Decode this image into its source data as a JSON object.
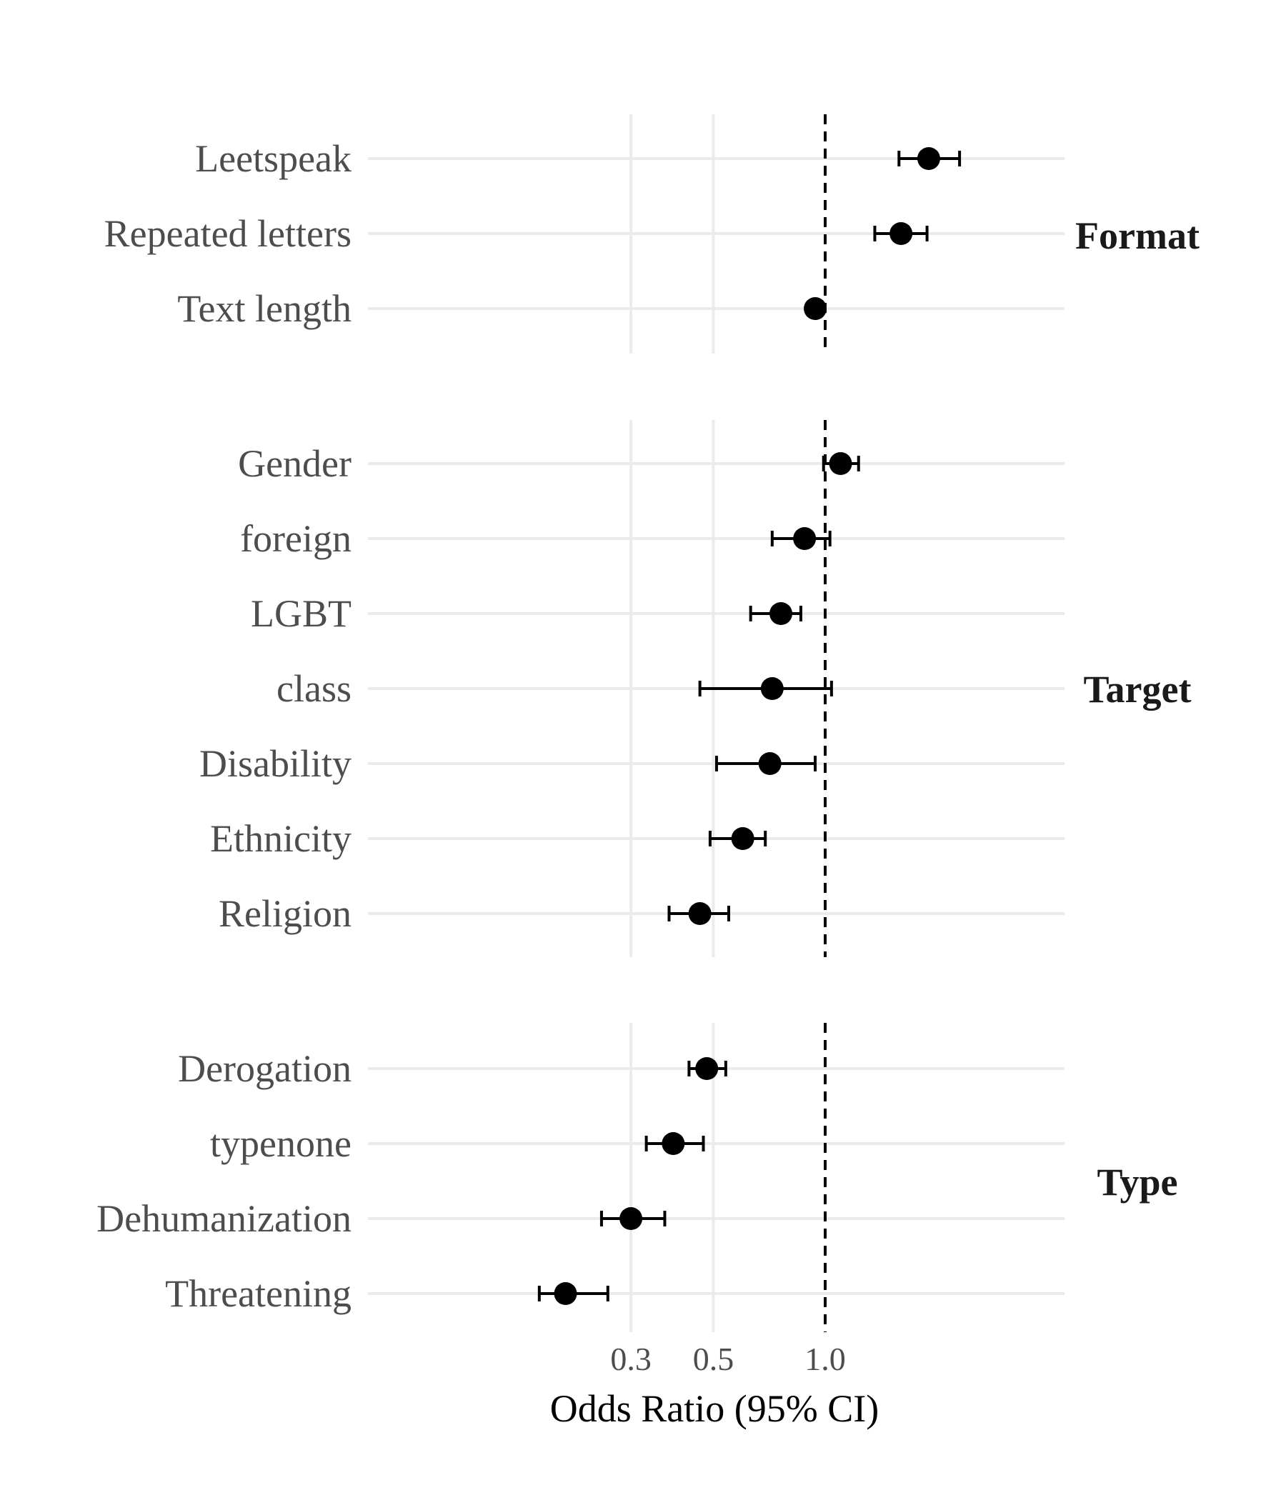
{
  "chart_data": {
    "type": "forest",
    "xlabel": "Odds Ratio (95% CI)",
    "x_scale": "log",
    "xlim": [
      0.17,
      2.8
    ],
    "x_ticks": [
      {
        "value": 0.3,
        "label": "0.3"
      },
      {
        "value": 0.5,
        "label": "0.5"
      },
      {
        "value": 1.0,
        "label": "1.0"
      }
    ],
    "reference_line": 1.0,
    "grid": true,
    "panels": [
      {
        "name": "Format",
        "rows": [
          {
            "label": "Leetspeak",
            "or": 1.9,
            "lo": 1.58,
            "hi": 2.3
          },
          {
            "label": "Repeated letters",
            "or": 1.6,
            "lo": 1.36,
            "hi": 1.88
          },
          {
            "label": "Text length",
            "or": 0.94,
            "lo": 0.94,
            "hi": 0.94
          }
        ]
      },
      {
        "name": "Target",
        "rows": [
          {
            "label": "Gender",
            "or": 1.1,
            "lo": 0.99,
            "hi": 1.23
          },
          {
            "label": "foreign",
            "or": 0.88,
            "lo": 0.72,
            "hi": 1.03
          },
          {
            "label": "LGBT",
            "or": 0.76,
            "lo": 0.63,
            "hi": 0.86
          },
          {
            "label": "class",
            "or": 0.72,
            "lo": 0.46,
            "hi": 1.04
          },
          {
            "label": "Disability",
            "or": 0.71,
            "lo": 0.51,
            "hi": 0.94
          },
          {
            "label": "Ethnicity",
            "or": 0.6,
            "lo": 0.49,
            "hi": 0.69
          },
          {
            "label": "Religion",
            "or": 0.46,
            "lo": 0.38,
            "hi": 0.55
          }
        ]
      },
      {
        "name": "Type",
        "rows": [
          {
            "label": "Derogation",
            "or": 0.48,
            "lo": 0.43,
            "hi": 0.54
          },
          {
            "label": "typenone",
            "or": 0.39,
            "lo": 0.33,
            "hi": 0.47
          },
          {
            "label": "Dehumanization",
            "or": 0.3,
            "lo": 0.25,
            "hi": 0.37
          },
          {
            "label": "Threatening",
            "or": 0.2,
            "lo": 0.17,
            "hi": 0.26
          }
        ]
      }
    ]
  }
}
